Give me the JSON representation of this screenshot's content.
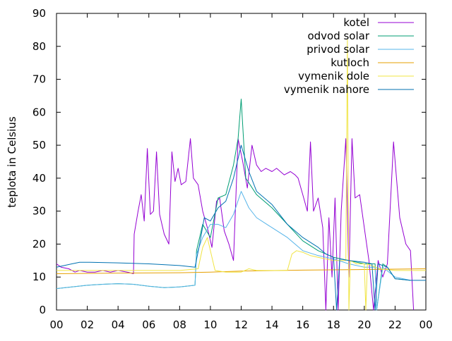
{
  "chart_data": {
    "type": "line",
    "title": "",
    "xlabel": "",
    "ylabel": "teplota in Celsius",
    "xlim": [
      0,
      24
    ],
    "ylim": [
      0,
      90
    ],
    "x_tick_labels": [
      "00",
      "02",
      "04",
      "06",
      "08",
      "10",
      "12",
      "14",
      "16",
      "18",
      "20",
      "22",
      "00"
    ],
    "y_tick_labels": [
      "0",
      "10",
      "20",
      "30",
      "40",
      "50",
      "60",
      "70",
      "80",
      "90"
    ],
    "legend_position": "top-right",
    "grid": false,
    "series": [
      {
        "name": "kotel",
        "color": "#9400d3",
        "points": [
          [
            0,
            14
          ],
          [
            0.3,
            13
          ],
          [
            0.8,
            12.5
          ],
          [
            1.2,
            11.5
          ],
          [
            1.5,
            12
          ],
          [
            2,
            11.5
          ],
          [
            2.5,
            11.5
          ],
          [
            3,
            12
          ],
          [
            3.5,
            11.5
          ],
          [
            4,
            12
          ],
          [
            4.6,
            11.5
          ],
          [
            5,
            11
          ],
          [
            5.05,
            23
          ],
          [
            5.3,
            30
          ],
          [
            5.5,
            35
          ],
          [
            5.7,
            27
          ],
          [
            5.9,
            49
          ],
          [
            6.1,
            29
          ],
          [
            6.3,
            30
          ],
          [
            6.5,
            48
          ],
          [
            6.7,
            29
          ],
          [
            7,
            23
          ],
          [
            7.3,
            20
          ],
          [
            7.5,
            48
          ],
          [
            7.7,
            39
          ],
          [
            7.9,
            43
          ],
          [
            8.1,
            38
          ],
          [
            8.4,
            39
          ],
          [
            8.7,
            52
          ],
          [
            8.9,
            40
          ],
          [
            9.2,
            38
          ],
          [
            9.5,
            30
          ],
          [
            9.8,
            25
          ],
          [
            10.1,
            19
          ],
          [
            10.4,
            33
          ],
          [
            10.6,
            34
          ],
          [
            10.9,
            24
          ],
          [
            11.2,
            20
          ],
          [
            11.5,
            15
          ],
          [
            11.8,
            52
          ],
          [
            12.1,
            45
          ],
          [
            12.4,
            37
          ],
          [
            12.7,
            50
          ],
          [
            13,
            44
          ],
          [
            13.3,
            42
          ],
          [
            13.6,
            43
          ],
          [
            14,
            42
          ],
          [
            14.3,
            43
          ],
          [
            14.8,
            41
          ],
          [
            15.2,
            42
          ],
          [
            15.5,
            41
          ],
          [
            15.7,
            40
          ],
          [
            16,
            35
          ],
          [
            16.3,
            30
          ],
          [
            16.5,
            51
          ],
          [
            16.7,
            30
          ],
          [
            17,
            34
          ],
          [
            17.3,
            25
          ],
          [
            17.5,
            0
          ],
          [
            17.7,
            28
          ],
          [
            17.9,
            10
          ],
          [
            18.1,
            34
          ],
          [
            18.3,
            0
          ],
          [
            18.5,
            30
          ],
          [
            18.8,
            52
          ],
          [
            19,
            10
          ],
          [
            19.2,
            52
          ],
          [
            19.4,
            34
          ],
          [
            19.7,
            35
          ],
          [
            20,
            25
          ],
          [
            20.3,
            15
          ],
          [
            20.6,
            0
          ],
          [
            20.9,
            15
          ],
          [
            21.2,
            10
          ],
          [
            21.5,
            14
          ],
          [
            21.9,
            51
          ],
          [
            22.3,
            28
          ],
          [
            22.7,
            20
          ],
          [
            23,
            18
          ],
          [
            23.2,
            0
          ]
        ]
      },
      {
        "name": "odvod solar",
        "color": "#009e73",
        "points": [
          [
            0,
            6.5
          ],
          [
            1,
            7
          ],
          [
            2,
            7.5
          ],
          [
            3,
            7.8
          ],
          [
            4,
            8
          ],
          [
            5,
            7.8
          ],
          [
            6,
            7.2
          ],
          [
            7,
            6.8
          ],
          [
            8,
            7
          ],
          [
            9,
            7.5
          ],
          [
            9.1,
            18
          ],
          [
            9.5,
            26
          ],
          [
            10,
            22
          ],
          [
            10.5,
            34
          ],
          [
            11,
            35
          ],
          [
            11.5,
            44
          ],
          [
            11.8,
            52
          ],
          [
            12,
            64
          ],
          [
            12.3,
            40
          ],
          [
            13,
            35
          ],
          [
            14,
            31
          ],
          [
            15,
            26
          ],
          [
            16,
            21
          ],
          [
            17,
            18
          ],
          [
            18,
            16
          ],
          [
            19,
            15
          ],
          [
            20,
            14
          ],
          [
            20.7,
            14
          ],
          [
            20.8,
            0
          ],
          [
            21.2,
            14
          ],
          [
            21.5,
            13
          ],
          [
            22,
            9.5
          ],
          [
            23,
            9
          ]
        ]
      },
      {
        "name": "privod solar",
        "color": "#56b4e9",
        "points": [
          [
            0,
            6.5
          ],
          [
            1,
            7
          ],
          [
            2,
            7.5
          ],
          [
            3,
            7.8
          ],
          [
            4,
            8
          ],
          [
            5,
            7.8
          ],
          [
            6,
            7.2
          ],
          [
            7,
            6.8
          ],
          [
            8,
            7
          ],
          [
            9,
            7.5
          ],
          [
            9.1,
            17
          ],
          [
            9.5,
            22
          ],
          [
            10,
            26
          ],
          [
            10.5,
            26
          ],
          [
            11,
            25
          ],
          [
            11.5,
            29
          ],
          [
            12,
            36
          ],
          [
            12.5,
            31
          ],
          [
            13,
            28
          ],
          [
            14,
            25
          ],
          [
            15,
            22
          ],
          [
            16,
            18
          ],
          [
            17,
            16.5
          ],
          [
            18,
            15.5
          ],
          [
            19,
            14
          ],
          [
            20,
            13
          ],
          [
            20.7,
            13
          ],
          [
            20.8,
            0
          ],
          [
            21.2,
            13
          ],
          [
            22,
            10
          ],
          [
            23,
            9
          ]
        ]
      },
      {
        "name": "kutloch",
        "color": "#e69f00",
        "points": [
          [
            0,
            11
          ],
          [
            4,
            11.2
          ],
          [
            8,
            11.3
          ],
          [
            10,
            11.5
          ],
          [
            12,
            11.8
          ],
          [
            16,
            12.1
          ],
          [
            20,
            12.3
          ],
          [
            24,
            12.5
          ]
        ]
      },
      {
        "name": "vymenik dole",
        "color": "#f0e442",
        "points": [
          [
            0,
            12
          ],
          [
            4,
            12
          ],
          [
            8,
            12
          ],
          [
            9.2,
            12.5
          ],
          [
            9.5,
            19
          ],
          [
            9.8,
            22
          ],
          [
            10,
            18
          ],
          [
            10.3,
            12
          ],
          [
            11,
            11.5
          ],
          [
            12,
            11.5
          ],
          [
            12.5,
            12.5
          ],
          [
            13,
            12
          ],
          [
            14,
            12
          ],
          [
            15,
            12
          ],
          [
            15.3,
            17
          ],
          [
            15.6,
            18
          ],
          [
            16,
            17.5
          ],
          [
            16.5,
            16.5
          ],
          [
            17,
            16
          ],
          [
            18,
            15
          ],
          [
            18.8,
            15
          ],
          [
            18.9,
            82
          ],
          [
            19,
            0
          ],
          [
            19.1,
            15
          ],
          [
            19.5,
            14
          ],
          [
            20,
            14
          ],
          [
            20.1,
            0
          ],
          [
            20.2,
            14
          ],
          [
            21,
            12.5
          ],
          [
            22,
            12
          ],
          [
            23,
            12
          ],
          [
            24,
            12
          ]
        ]
      },
      {
        "name": "vymenik nahore",
        "color": "#0072b2",
        "points": [
          [
            0,
            13
          ],
          [
            1,
            14
          ],
          [
            1.5,
            14.5
          ],
          [
            2,
            14.5
          ],
          [
            4,
            14.3
          ],
          [
            6,
            14
          ],
          [
            8,
            13.5
          ],
          [
            9,
            13
          ],
          [
            9.3,
            20
          ],
          [
            9.6,
            28
          ],
          [
            10,
            27
          ],
          [
            10.5,
            31
          ],
          [
            11,
            33
          ],
          [
            11.5,
            40
          ],
          [
            12,
            50
          ],
          [
            12.5,
            42
          ],
          [
            13,
            36
          ],
          [
            14,
            32
          ],
          [
            15,
            26
          ],
          [
            16,
            22
          ],
          [
            17,
            19
          ],
          [
            17.5,
            17
          ],
          [
            18,
            16
          ],
          [
            18.2,
            0
          ],
          [
            18.4,
            15.5
          ],
          [
            19,
            15
          ],
          [
            20,
            14.5
          ],
          [
            20.5,
            14
          ],
          [
            20.7,
            0
          ],
          [
            20.9,
            14
          ],
          [
            21.5,
            13
          ],
          [
            22,
            9.5
          ],
          [
            23,
            9
          ],
          [
            24,
            9
          ]
        ]
      }
    ]
  }
}
